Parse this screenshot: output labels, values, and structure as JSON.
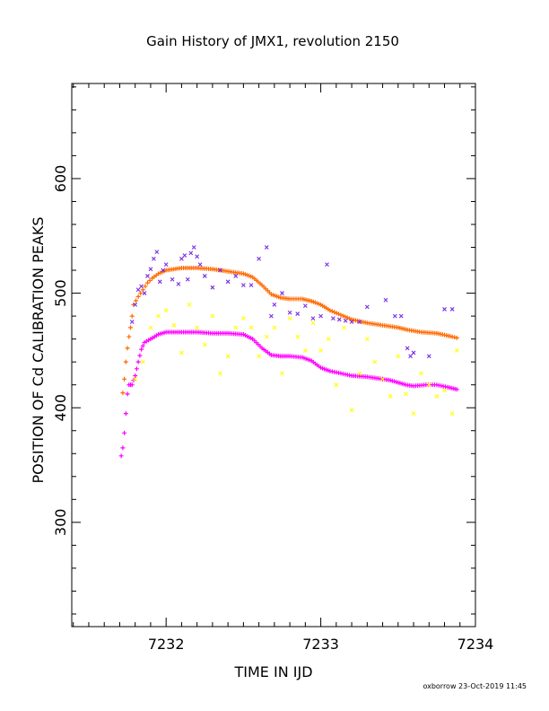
{
  "chart_data": {
    "type": "scatter",
    "title": "Gain History of JMX1, revolution 2150",
    "xlabel": "TIME IN IJD",
    "ylabel": "POSITION OF Cd CALIBRATION PEAKS",
    "xlim": [
      7231.39,
      7234.0
    ],
    "ylim": [
      209,
      683
    ],
    "x_ticks": [
      7232,
      7233,
      7234
    ],
    "y_ticks": [
      300,
      400,
      500,
      600
    ],
    "grid": false,
    "legend": "none",
    "footer": "oxborrow 23-Oct-2019 11:45",
    "series": [
      {
        "marker": "+",
        "color": "#ff6a00",
        "points": [
          [
            7231.72,
            413
          ],
          [
            7231.73,
            425
          ],
          [
            7231.74,
            440
          ],
          [
            7231.75,
            452
          ],
          [
            7231.76,
            462
          ],
          [
            7231.77,
            470
          ],
          [
            7231.79,
            490
          ],
          [
            7231.82,
            497
          ],
          [
            7231.85,
            503
          ],
          [
            7231.88,
            509
          ],
          [
            7231.91,
            513
          ],
          [
            7231.95,
            517
          ],
          [
            7232.0,
            520
          ],
          [
            7232.1,
            522
          ],
          [
            7232.2,
            522
          ],
          [
            7232.3,
            521
          ],
          [
            7232.4,
            519
          ],
          [
            7232.5,
            517
          ],
          [
            7232.56,
            514
          ],
          [
            7232.62,
            507
          ],
          [
            7232.68,
            499
          ],
          [
            7232.74,
            496
          ],
          [
            7232.8,
            495
          ],
          [
            7232.88,
            495
          ],
          [
            7232.94,
            493
          ],
          [
            7233.0,
            490
          ],
          [
            7233.06,
            485
          ],
          [
            7233.13,
            481
          ],
          [
            7233.2,
            477
          ],
          [
            7233.3,
            474
          ],
          [
            7233.4,
            472
          ],
          [
            7233.5,
            470
          ],
          [
            7233.56,
            468
          ],
          [
            7233.65,
            466
          ],
          [
            7233.75,
            465
          ],
          [
            7233.85,
            462
          ],
          [
            7233.88,
            461
          ]
        ]
      },
      {
        "marker": "+",
        "color": "#ff00ff",
        "points": [
          [
            7231.71,
            358
          ],
          [
            7231.72,
            365
          ],
          [
            7231.73,
            378
          ],
          [
            7231.74,
            395
          ],
          [
            7231.75,
            412
          ],
          [
            7231.76,
            420
          ],
          [
            7231.78,
            420
          ],
          [
            7231.8,
            428
          ],
          [
            7231.82,
            440
          ],
          [
            7231.84,
            451
          ],
          [
            7231.86,
            457
          ],
          [
            7231.9,
            460
          ],
          [
            7231.95,
            464
          ],
          [
            7232.0,
            466
          ],
          [
            7232.1,
            466
          ],
          [
            7232.2,
            466
          ],
          [
            7232.3,
            465
          ],
          [
            7232.4,
            465
          ],
          [
            7232.5,
            464
          ],
          [
            7232.56,
            460
          ],
          [
            7232.62,
            452
          ],
          [
            7232.68,
            446
          ],
          [
            7232.74,
            445
          ],
          [
            7232.8,
            445
          ],
          [
            7232.88,
            444
          ],
          [
            7232.94,
            441
          ],
          [
            7233.0,
            435
          ],
          [
            7233.06,
            432
          ],
          [
            7233.13,
            430
          ],
          [
            7233.2,
            428
          ],
          [
            7233.3,
            427
          ],
          [
            7233.4,
            425
          ],
          [
            7233.45,
            424
          ],
          [
            7233.5,
            422
          ],
          [
            7233.55,
            420
          ],
          [
            7233.6,
            419
          ],
          [
            7233.68,
            420
          ],
          [
            7233.75,
            420
          ],
          [
            7233.82,
            418
          ],
          [
            7233.88,
            416
          ]
        ]
      },
      {
        "marker": "x",
        "color": "#7b2be6",
        "points": [
          [
            7231.78,
            475
          ],
          [
            7231.8,
            490
          ],
          [
            7231.82,
            503
          ],
          [
            7231.84,
            506
          ],
          [
            7231.86,
            500
          ],
          [
            7231.88,
            515
          ],
          [
            7231.9,
            521
          ],
          [
            7231.92,
            530
          ],
          [
            7231.94,
            536
          ],
          [
            7231.96,
            510
          ],
          [
            7231.98,
            520
          ],
          [
            7232.0,
            525
          ],
          [
            7232.04,
            512
          ],
          [
            7232.08,
            508
          ],
          [
            7232.1,
            530
          ],
          [
            7232.12,
            533
          ],
          [
            7232.14,
            512
          ],
          [
            7232.16,
            535
          ],
          [
            7232.18,
            540
          ],
          [
            7232.2,
            532
          ],
          [
            7232.22,
            525
          ],
          [
            7232.25,
            515
          ],
          [
            7232.3,
            505
          ],
          [
            7232.35,
            520
          ],
          [
            7232.4,
            510
          ],
          [
            7232.45,
            515
          ],
          [
            7232.5,
            507
          ],
          [
            7232.55,
            507
          ],
          [
            7232.6,
            530
          ],
          [
            7232.65,
            540
          ],
          [
            7232.68,
            480
          ],
          [
            7232.7,
            490
          ],
          [
            7232.75,
            500
          ],
          [
            7232.8,
            483
          ],
          [
            7232.85,
            482
          ],
          [
            7232.9,
            489
          ],
          [
            7232.95,
            478
          ],
          [
            7233.0,
            480
          ],
          [
            7233.04,
            525
          ],
          [
            7233.08,
            478
          ],
          [
            7233.12,
            477
          ],
          [
            7233.16,
            476
          ],
          [
            7233.2,
            475
          ],
          [
            7233.25,
            475
          ],
          [
            7233.3,
            488
          ],
          [
            7233.42,
            494
          ],
          [
            7233.48,
            480
          ],
          [
            7233.52,
            480
          ],
          [
            7233.56,
            452
          ],
          [
            7233.58,
            445
          ],
          [
            7233.6,
            448
          ],
          [
            7233.7,
            445
          ],
          [
            7233.8,
            486
          ],
          [
            7233.85,
            486
          ]
        ]
      },
      {
        "marker": "x",
        "color": "#ffff00",
        "points": [
          [
            7231.8,
            425
          ],
          [
            7231.85,
            440
          ],
          [
            7231.9,
            470
          ],
          [
            7231.95,
            480
          ],
          [
            7232.0,
            485
          ],
          [
            7232.05,
            472
          ],
          [
            7232.1,
            448
          ],
          [
            7232.15,
            490
          ],
          [
            7232.2,
            470
          ],
          [
            7232.25,
            455
          ],
          [
            7232.3,
            480
          ],
          [
            7232.35,
            430
          ],
          [
            7232.4,
            445
          ],
          [
            7232.45,
            470
          ],
          [
            7232.5,
            478
          ],
          [
            7232.55,
            470
          ],
          [
            7232.6,
            445
          ],
          [
            7232.65,
            462
          ],
          [
            7232.7,
            470
          ],
          [
            7232.75,
            430
          ],
          [
            7232.8,
            478
          ],
          [
            7232.85,
            462
          ],
          [
            7232.9,
            450
          ],
          [
            7232.95,
            474
          ],
          [
            7233.0,
            450
          ],
          [
            7233.05,
            460
          ],
          [
            7233.1,
            420
          ],
          [
            7233.15,
            470
          ],
          [
            7233.2,
            398
          ],
          [
            7233.25,
            430
          ],
          [
            7233.3,
            460
          ],
          [
            7233.35,
            440
          ],
          [
            7233.4,
            425
          ],
          [
            7233.45,
            410
          ],
          [
            7233.5,
            445
          ],
          [
            7233.55,
            412
          ],
          [
            7233.6,
            395
          ],
          [
            7233.65,
            430
          ],
          [
            7233.7,
            420
          ],
          [
            7233.75,
            410
          ],
          [
            7233.8,
            415
          ],
          [
            7233.85,
            395
          ],
          [
            7233.88,
            450
          ]
        ]
      }
    ]
  }
}
